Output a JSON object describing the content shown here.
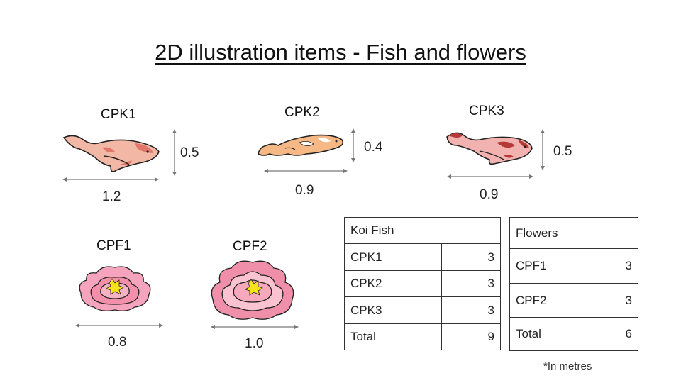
{
  "title": "2D illustration items - Fish and flowers",
  "fish": [
    {
      "label": "CPK1",
      "length": "1.2",
      "height": "0.5",
      "icon": "koi-fish-icon"
    },
    {
      "label": "CPK2",
      "length": "0.9",
      "height": "0.4",
      "icon": "koi-fish-icon"
    },
    {
      "label": "CPK3",
      "length": "0.9",
      "height": "0.5",
      "icon": "koi-fish-icon"
    }
  ],
  "flowers": [
    {
      "label": "CPF1",
      "width": "0.8",
      "icon": "peony-flower-icon"
    },
    {
      "label": "CPF2",
      "width": "1.0",
      "icon": "peony-flower-icon"
    }
  ],
  "koi_table": {
    "header": "Koi Fish",
    "rows": [
      {
        "name": "CPK1",
        "qty": "3"
      },
      {
        "name": "CPK2",
        "qty": "3"
      },
      {
        "name": "CPK3",
        "qty": "3"
      }
    ],
    "total_label": "Total",
    "total": "9"
  },
  "flower_table": {
    "header": "Flowers",
    "rows": [
      {
        "name": "CPF1",
        "qty": "3"
      },
      {
        "name": "CPF2",
        "qty": "3"
      }
    ],
    "total_label": "Total",
    "total": "6"
  },
  "footnote": "*In metres",
  "colors": {
    "fish1": "#f3b7a6",
    "fish1_spots": "#e0776a",
    "fish2": "#f6b985",
    "fish2_spots": "#ffffff",
    "fish3": "#f2b3b0",
    "fish3_spots": "#b53a37",
    "flower1": "#f6a4bd",
    "flower2": "#ef8fa9",
    "flower_center": "#f6e21a",
    "arrow": "#777777"
  }
}
